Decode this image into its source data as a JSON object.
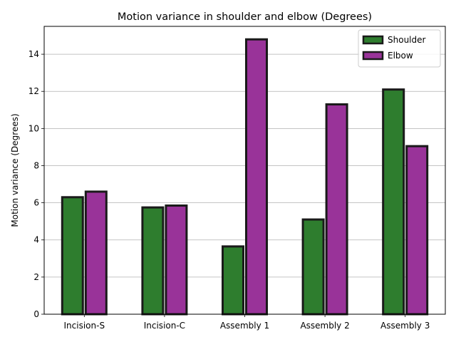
{
  "chart_data": {
    "type": "bar",
    "title": "Motion variance in shoulder and elbow (Degrees)",
    "xlabel": "",
    "ylabel": "Motion variance (Degrees)",
    "categories": [
      "Incision-S",
      "Incision-C",
      "Assembly 1",
      "Assembly 2",
      "Assembly 3"
    ],
    "series": [
      {
        "name": "Shoulder",
        "color": "#2e7d2e",
        "values": [
          6.3,
          5.75,
          3.65,
          5.1,
          12.1
        ]
      },
      {
        "name": "Elbow",
        "color": "#993399",
        "values": [
          6.6,
          5.85,
          14.8,
          11.3,
          9.05
        ]
      }
    ],
    "edge_color": "#1a1a1a",
    "ylim": [
      0,
      15.5
    ],
    "yticks": [
      0,
      2,
      4,
      6,
      8,
      10,
      12,
      14
    ],
    "grid": "y",
    "legend_position": "upper right"
  }
}
